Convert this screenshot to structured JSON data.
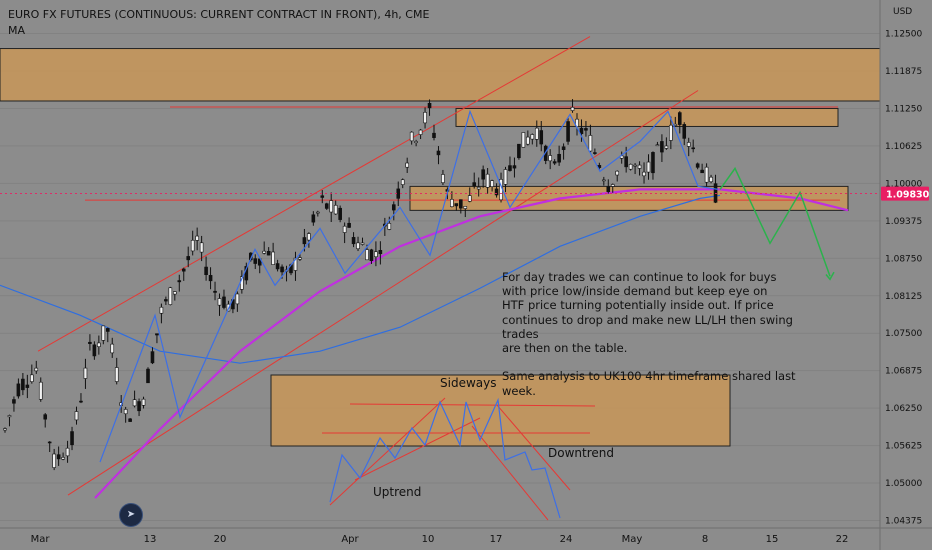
{
  "header": {
    "title": "EURO FX FUTURES (CONTINUOUS: CURRENT CONTRACT IN FRONT), 4h, CME",
    "indicator": "MA"
  },
  "price_axis": {
    "currency": "USD",
    "last_price": "1.09830",
    "last_price_color": "#e91e63"
  },
  "annotation": {
    "text": "For day trades we can continue to look for buys\nwith price low/inside demand but keep eye on\nHTF price turning potentially inside out. If price\ncontinues to drop and make new LL/LH then swing trades\nare then on the table.\n\nSame analysis to UK100 4hr timeframe shared last week."
  },
  "inset_labels": {
    "sideways": "Sideways",
    "downtrend": "Downtrend",
    "uptrend": "Uptrend"
  },
  "colors": {
    "background": "#8c8c8c",
    "zone": "#c89658",
    "trendline": "#e53935",
    "ma_short": "#c030e0",
    "ma_long": "#2f6ee0",
    "zigzag": "#3d6fe6",
    "projection": "#2bb24c"
  },
  "chart_data": {
    "type": "candlestick",
    "title": "EURO FX FUTURES (CONTINUOUS: CURRENT CONTRACT IN FRONT), 4h, CME",
    "y_ticks": [
      "1.12500",
      "1.11875",
      "1.11250",
      "1.10625",
      "1.10000",
      "1.09375",
      "1.08750",
      "1.08125",
      "1.07500",
      "1.06875",
      "1.06250",
      "1.05625",
      "1.05000",
      "1.04375"
    ],
    "x_ticks": [
      "Mar",
      "13",
      "20",
      "Apr",
      "10",
      "17",
      "24",
      "May",
      "8",
      "15",
      "22"
    ],
    "ylim": [
      1.0425,
      1.1306
    ],
    "price_path": [
      [
        "Mar",
        1.0565
      ],
      [
        "6",
        1.066
      ],
      [
        "7",
        1.069
      ],
      [
        "8",
        1.0535
      ],
      [
        "10",
        1.057
      ],
      [
        "13",
        1.072
      ],
      [
        "14",
        1.0755
      ],
      [
        "15",
        1.061
      ],
      [
        "16",
        1.0645
      ],
      [
        "20",
        1.0785
      ],
      [
        "21",
        1.084
      ],
      [
        "22",
        1.0905
      ],
      [
        "23",
        1.082
      ],
      [
        "24",
        1.079
      ],
      [
        "27",
        1.087
      ],
      [
        "29",
        1.089
      ],
      [
        "31",
        1.084
      ],
      [
        "Apr",
        1.0895
      ],
      [
        "4",
        1.0968
      ],
      [
        "5",
        1.0945
      ],
      [
        "7",
        1.09
      ],
      [
        "10",
        1.088
      ],
      [
        "11",
        1.096
      ],
      [
        "13",
        1.107
      ],
      [
        "14",
        1.112
      ],
      [
        "17",
        1.098
      ],
      [
        "18",
        1.096
      ],
      [
        "20",
        1.101
      ],
      [
        "21",
        1.099
      ],
      [
        "24",
        1.106
      ],
      [
        "25",
        1.109
      ],
      [
        "26",
        1.102
      ],
      [
        "27",
        1.111
      ],
      [
        "28",
        1.107
      ],
      [
        "May",
        1.1
      ],
      [
        "2",
        1.104
      ],
      [
        "3",
        1.101
      ],
      [
        "4",
        1.106
      ],
      [
        "5",
        1.111
      ],
      [
        "8",
        1.104
      ],
      [
        "9",
        1.0983
      ]
    ],
    "zones": [
      {
        "low": 1.11375,
        "high": 1.1225
      },
      {
        "low": 1.1095,
        "high": 1.1125
      },
      {
        "low": 1.0955,
        "high": 1.0995
      }
    ],
    "horizontal_lines": [
      1.11275,
      1.0983
    ],
    "moving_averages": [
      "MA"
    ]
  }
}
